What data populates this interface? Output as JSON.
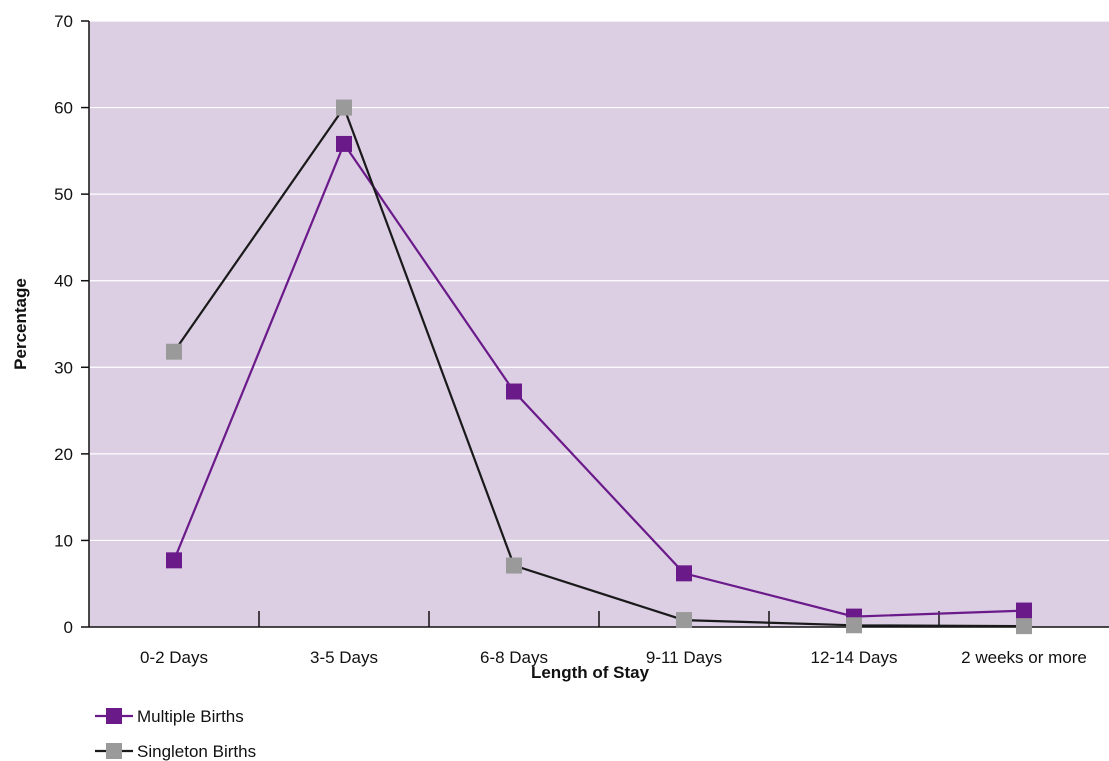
{
  "chart_data": {
    "type": "line",
    "categories": [
      "0-2 Days",
      "3-5 Days",
      "6-8 Days",
      "9-11 Days",
      "12-14 Days",
      "2 weeks or more"
    ],
    "series": [
      {
        "name": "Multiple Births",
        "values": [
          7.7,
          55.8,
          27.2,
          6.2,
          1.2,
          1.9
        ],
        "color": "#6b1a8a",
        "marker": "square"
      },
      {
        "name": "Singleton Births",
        "values": [
          31.8,
          60.0,
          7.1,
          0.8,
          0.2,
          0.1
        ],
        "color": "#1a1a1a",
        "marker_color": "#9a9a9a",
        "marker": "square"
      }
    ],
    "title": "",
    "xlabel": "Length of Stay",
    "ylabel": "Percentage",
    "ylim": [
      0,
      70
    ],
    "yticks": [
      0,
      10,
      20,
      30,
      40,
      50,
      60,
      70
    ],
    "grid": true,
    "plot_background": "#dccfe4",
    "gridline_color": "#ffffff",
    "legend_position": "bottom-left"
  }
}
